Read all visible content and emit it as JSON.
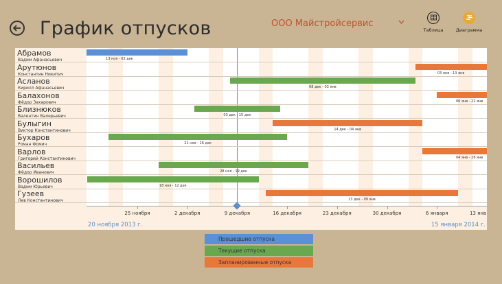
{
  "header": {
    "title": "График отпусков",
    "company": "ООО Майстройсервис",
    "tools": [
      {
        "label": "Таблица",
        "icon": "table-icon"
      },
      {
        "label": "Диаграмма",
        "icon": "diagram-icon"
      }
    ]
  },
  "colors": {
    "past": "#5b8fd6",
    "current": "#6aa84f",
    "planned": "#e8773a",
    "accent": "#c0532a",
    "today": "#5b8fc6"
  },
  "timeline": {
    "ticks": [
      "25 ноября",
      "2 декабря",
      "9 декабря",
      "16 декабря",
      "23 декабря",
      "30 декабря",
      "6 января",
      "13 янв"
    ],
    "range_start": "20 ноября 2013 г.",
    "range_end": "15 января 2014 г."
  },
  "employees": [
    {
      "last": "Абрамов",
      "first": "Вадим Афанасьевич",
      "bar_label": "13 ноя - 02 дек",
      "status": "past",
      "start": "2013-11-13",
      "end": "2013-12-02"
    },
    {
      "last": "Арутюнов",
      "first": "Константин Никитич",
      "bar_label": "03 янв - 13 янв",
      "status": "planned",
      "start": "2014-01-03",
      "end": "2014-01-13"
    },
    {
      "last": "Асланов",
      "first": "Кирилл Афанасьевич",
      "bar_label": "08 дек - 03 янв",
      "status": "current",
      "start": "2013-12-08",
      "end": "2014-01-03"
    },
    {
      "last": "Балахонов",
      "first": "Фёдор Захарович",
      "bar_label": "06 янв - 22 янв",
      "status": "planned",
      "start": "2014-01-06",
      "end": "2014-01-22"
    },
    {
      "last": "Близнюков",
      "first": "Валентин Валерьевич",
      "bar_label": "03 дек - 15 дек",
      "status": "current",
      "start": "2013-12-03",
      "end": "2013-12-15"
    },
    {
      "last": "Булыгин",
      "first": "Виктор Константинович",
      "bar_label": "14 дек - 04 янв",
      "status": "planned",
      "start": "2013-12-14",
      "end": "2014-01-04"
    },
    {
      "last": "Бухаров",
      "first": "Роман  Фомич",
      "bar_label": "21 ноя - 16 дек",
      "status": "current",
      "start": "2013-11-21",
      "end": "2013-12-16"
    },
    {
      "last": "Варлов",
      "first": "Григорий Константинович",
      "bar_label": "04 янв - 28 янв",
      "status": "planned",
      "start": "2014-01-04",
      "end": "2014-01-28"
    },
    {
      "last": "Васильев",
      "first": "Фёдор Иванович",
      "bar_label": "28 ноя - 19 дек",
      "status": "current",
      "start": "2013-11-28",
      "end": "2013-12-19"
    },
    {
      "last": "Ворошилов",
      "first": "Вадим Юрьевич",
      "bar_label": "18 ноя - 12 дек",
      "status": "current",
      "start": "2013-11-18",
      "end": "2013-12-12"
    },
    {
      "last": "Гузеев",
      "first": "Лев Константинович",
      "bar_label": "13 дек - 09 янв",
      "status": "planned",
      "start": "2013-12-13",
      "end": "2014-01-09"
    }
  ],
  "legend": [
    {
      "label": "Прошедшие отпуска",
      "status": "past"
    },
    {
      "label": "Текущие отпуска",
      "status": "current"
    },
    {
      "label": "Запланированные отпуска",
      "status": "planned"
    }
  ]
}
